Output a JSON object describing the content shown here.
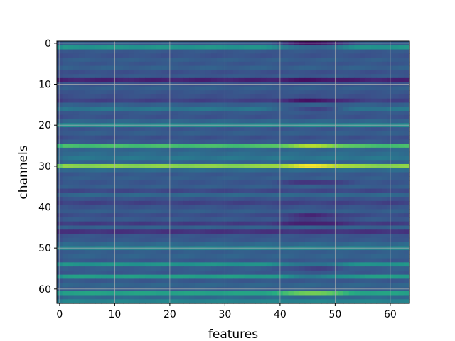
{
  "chart_data": {
    "type": "heatmap",
    "title": "",
    "xlabel": "features",
    "ylabel": "channels",
    "xlim": [
      -0.5,
      63.5
    ],
    "ylim": [
      63.5,
      -0.5
    ],
    "xticks": [
      0,
      10,
      20,
      30,
      40,
      50,
      60
    ],
    "yticks": [
      0,
      10,
      20,
      30,
      40,
      50,
      60
    ],
    "grid": true,
    "colormap": "viridis",
    "value_range": [
      0,
      1
    ],
    "n_rows": 64,
    "n_cols": 64,
    "row_base_values": [
      0.3,
      0.52,
      0.28,
      0.26,
      0.3,
      0.27,
      0.31,
      0.25,
      0.28,
      0.1,
      0.26,
      0.3,
      0.27,
      0.25,
      0.2,
      0.31,
      0.4,
      0.28,
      0.26,
      0.33,
      0.48,
      0.27,
      0.3,
      0.25,
      0.28,
      0.7,
      0.33,
      0.36,
      0.4,
      0.32,
      0.82,
      0.35,
      0.28,
      0.3,
      0.27,
      0.3,
      0.22,
      0.34,
      0.26,
      0.2,
      0.26,
      0.3,
      0.24,
      0.28,
      0.18,
      0.31,
      0.15,
      0.27,
      0.28,
      0.35,
      0.45,
      0.3,
      0.32,
      0.28,
      0.52,
      0.3,
      0.28,
      0.56,
      0.28,
      0.33,
      0.3,
      0.58,
      0.35,
      0.45
    ],
    "feature_anomaly": {
      "center": 46,
      "width": 4,
      "rows": [
        {
          "row": 0,
          "delta": -0.25
        },
        {
          "row": 1,
          "delta": -0.2
        },
        {
          "row": 9,
          "delta": -0.05
        },
        {
          "row": 14,
          "delta": -0.15
        },
        {
          "row": 16,
          "delta": -0.2
        },
        {
          "row": 25,
          "delta": 0.18
        },
        {
          "row": 30,
          "delta": 0.16
        },
        {
          "row": 34,
          "delta": -0.12
        },
        {
          "row": 42,
          "delta": -0.12
        },
        {
          "row": 43,
          "delta": -0.1
        },
        {
          "row": 44,
          "delta": -0.1
        },
        {
          "row": 54,
          "delta": -0.15
        },
        {
          "row": 55,
          "delta": -0.1
        },
        {
          "row": 57,
          "delta": -0.14
        },
        {
          "row": 61,
          "delta": 0.22
        }
      ]
    }
  }
}
